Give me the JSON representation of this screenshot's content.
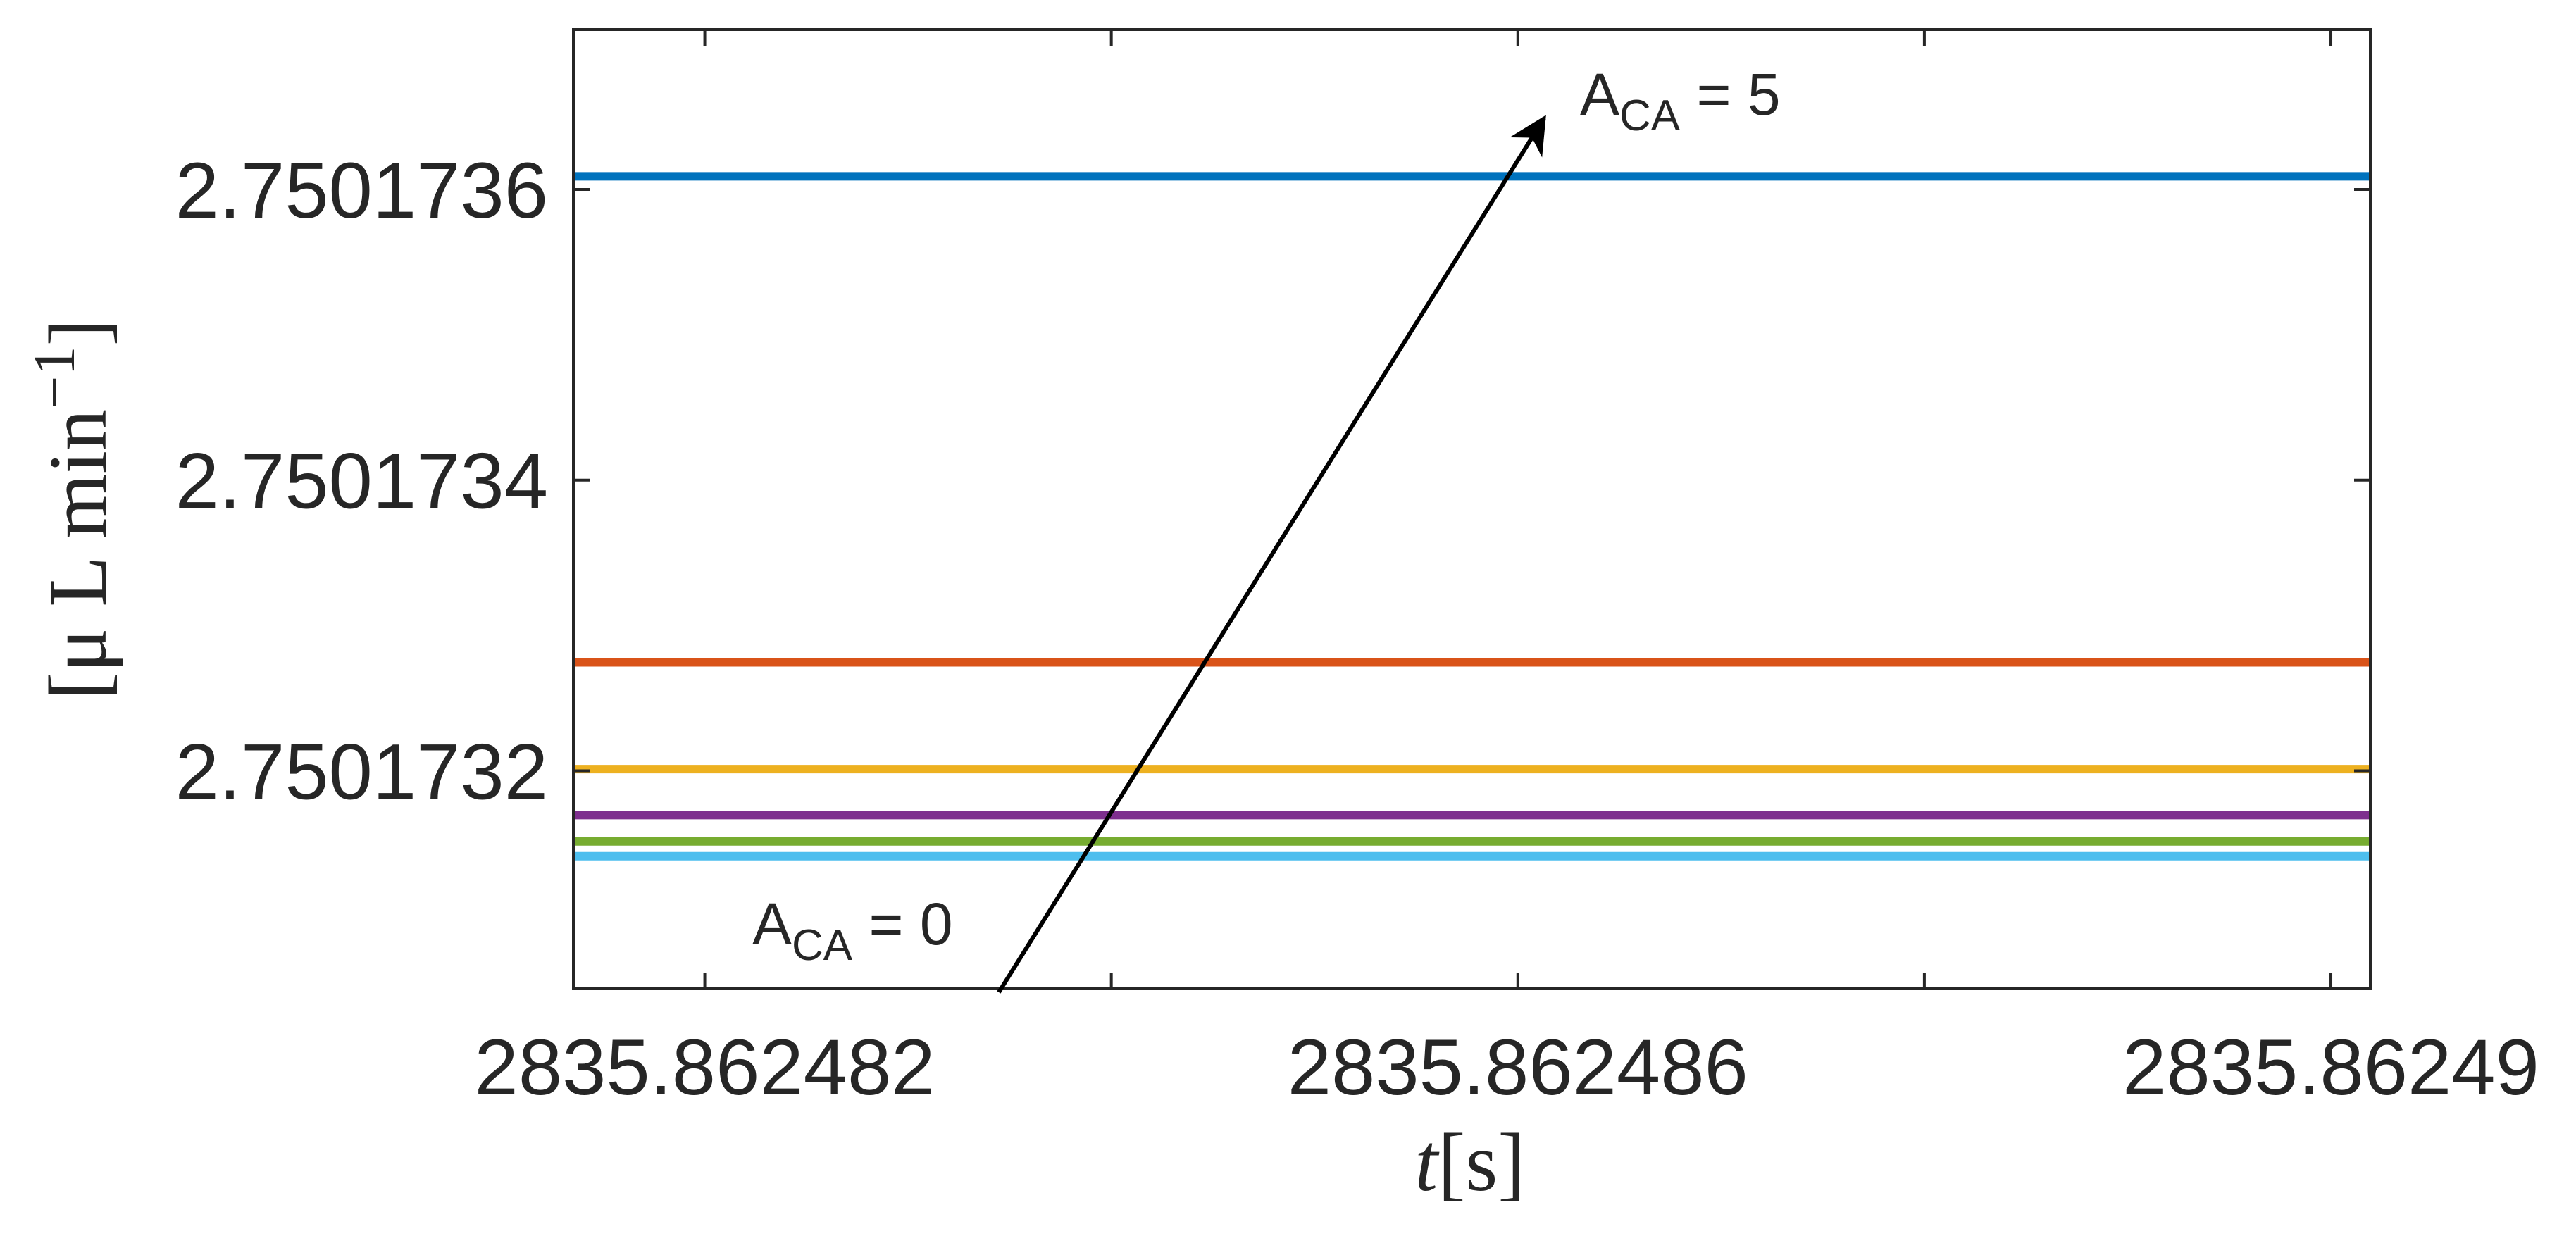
{
  "chart_data": {
    "type": "line",
    "xlabel": {
      "italic": "t",
      "text": "[s]"
    },
    "ylabel": {
      "text": "[μ L min",
      "superscript": "−1",
      "suffix": "]"
    },
    "xlim": [
      2835.8624813535,
      2835.862490194
    ],
    "xticks": [
      2835.862482,
      2835.862486,
      2835.86249
    ],
    "xminorticks": [
      2835.862484,
      2835.862488
    ],
    "ylim": [
      2.75017305,
      2.75017371
    ],
    "yticks": [
      2.7501732,
      2.7501734,
      2.7501736
    ],
    "x": [
      2835.8624813535,
      2835.862490194
    ],
    "series": [
      {
        "color": "#0072BD",
        "values": [
          2.750173609,
          2.750173609
        ]
      },
      {
        "color": "#D95319",
        "values": [
          2.7501732746,
          2.7501732746
        ]
      },
      {
        "color": "#EDB120",
        "values": [
          2.7501732011,
          2.7501732011
        ]
      },
      {
        "color": "#7E2F8E",
        "values": [
          2.7501731695,
          2.7501731695
        ]
      },
      {
        "color": "#77AC30",
        "values": [
          2.7501731514,
          2.7501731514
        ]
      },
      {
        "color": "#4DBEEE",
        "values": [
          2.7501731412,
          2.7501731412
        ]
      }
    ],
    "annotations": [
      {
        "text": "A",
        "subscript": "CA",
        "suffix": " = 0"
      },
      {
        "text": "A",
        "subscript": "CA",
        "suffix": " = 5"
      }
    ]
  }
}
